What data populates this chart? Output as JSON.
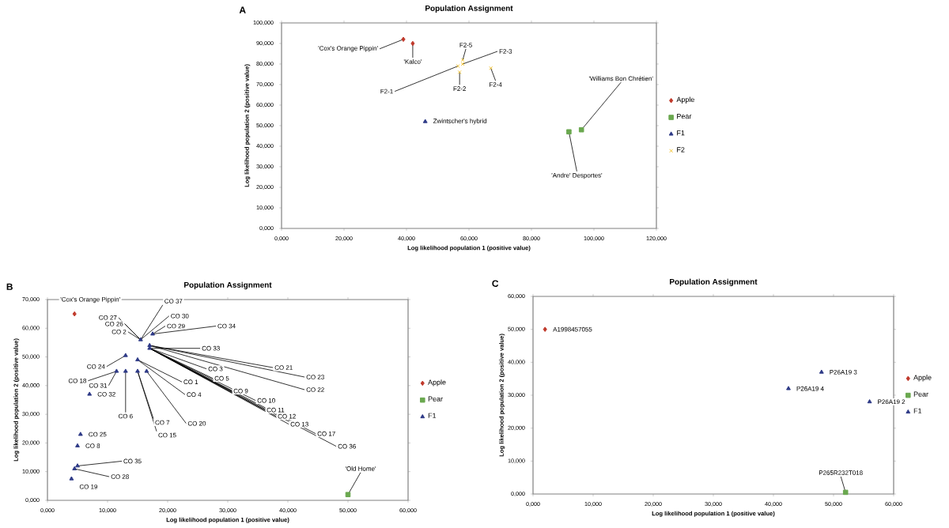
{
  "chart_data": [
    {
      "type": "scatter",
      "title": "Population Assignment",
      "xlabel": "Log likelihood population 1 (positive value)",
      "ylabel": "Log likelihood population 2 (positive value)",
      "xlim": [
        0,
        120
      ],
      "ylim": [
        0,
        100
      ],
      "xticks": [
        {
          "value": 0,
          "label": "0,000"
        },
        {
          "value": 20,
          "label": "20,000"
        },
        {
          "value": 40,
          "label": "40,000"
        },
        {
          "value": 60,
          "label": "60,000"
        },
        {
          "value": 80,
          "label": "80,000"
        },
        {
          "value": 100,
          "label": "100,000"
        },
        {
          "value": 120,
          "label": "120,000"
        }
      ],
      "yticks": [
        {
          "value": 0,
          "label": "0,000"
        },
        {
          "value": 10,
          "label": "10,000"
        },
        {
          "value": 20,
          "label": "20,000"
        },
        {
          "value": 30,
          "label": "30,000"
        },
        {
          "value": 40,
          "label": "40,000"
        },
        {
          "value": 50,
          "label": "50,000"
        },
        {
          "value": 60,
          "label": "60,000"
        },
        {
          "value": 70,
          "label": "70,000"
        },
        {
          "value": 80,
          "label": "80,000"
        },
        {
          "value": 90,
          "label": "90,000"
        },
        {
          "value": 100,
          "label": "100,000"
        }
      ],
      "legend": "right",
      "series": [
        {
          "name": "Apple",
          "color": "#c0392b",
          "marker": "diamond",
          "x": [
            39,
            42
          ],
          "values": [
            92,
            90
          ]
        },
        {
          "name": "Pear",
          "color": "#6aa84f",
          "marker": "square",
          "x": [
            92,
            96
          ],
          "values": [
            47,
            48
          ]
        },
        {
          "name": "F1",
          "color": "#2e3a87",
          "marker": "triangle",
          "x": [
            46
          ],
          "values": [
            52
          ]
        },
        {
          "name": "F2",
          "color": "#f1c232",
          "marker": "cross",
          "x": [
            56.5,
            57,
            58,
            67,
            58
          ],
          "values": [
            79,
            76,
            80,
            78,
            82
          ]
        }
      ],
      "annotations": [
        "A",
        {
          "text": "'Cox's Orange Pippin'",
          "x": 39,
          "y": 92
        },
        {
          "text": "'Kalco'",
          "x": 42,
          "y": 90
        },
        {
          "text": "F2-1",
          "x": 56.5,
          "y": 79
        },
        {
          "text": "F2-2",
          "x": 57,
          "y": 76
        },
        {
          "text": "F2-3",
          "x": 58,
          "y": 80
        },
        {
          "text": "F2-4",
          "x": 67,
          "y": 78
        },
        {
          "text": "F2-5",
          "x": 58,
          "y": 82
        },
        {
          "text": "Zwintscher's hybrid",
          "x": 46,
          "y": 52
        },
        {
          "text": "'Williams Bon Chrétien'",
          "x": 96,
          "y": 48
        },
        {
          "text": "'Andre' Desportes'",
          "x": 92,
          "y": 47
        }
      ]
    },
    {
      "type": "scatter",
      "title": "Population Assignment",
      "xlabel": "Log likelihood population 1 (positive value)",
      "ylabel": "Log likelihood population 2 (positive value)",
      "xlim": [
        0,
        60
      ],
      "ylim": [
        0,
        70
      ],
      "xticks": [
        {
          "value": 0,
          "label": "0,000"
        },
        {
          "value": 10,
          "label": "10,000"
        },
        {
          "value": 20,
          "label": "20,000"
        },
        {
          "value": 30,
          "label": "30,000"
        },
        {
          "value": 40,
          "label": "40,000"
        },
        {
          "value": 50,
          "label": "50,000"
        },
        {
          "value": 60,
          "label": "60,000"
        }
      ],
      "yticks": [
        {
          "value": 0,
          "label": "0,000"
        },
        {
          "value": 10,
          "label": "10,000"
        },
        {
          "value": 20,
          "label": "20,000"
        },
        {
          "value": 30,
          "label": "30,000"
        },
        {
          "value": 40,
          "label": "40,000"
        },
        {
          "value": 50,
          "label": "50,000"
        },
        {
          "value": 60,
          "label": "60,000"
        },
        {
          "value": 70,
          "label": "70,000"
        }
      ],
      "legend": "right",
      "series": [
        {
          "name": "Apple",
          "color": "#c0392b",
          "marker": "diamond",
          "x": [
            4.5
          ],
          "values": [
            65
          ]
        },
        {
          "name": "Pear",
          "color": "#6aa84f",
          "marker": "square",
          "x": [
            50
          ],
          "values": [
            2
          ]
        },
        {
          "name": "F1",
          "color": "#2e3a87",
          "marker": "triangle",
          "x": [
            15.5,
            17.5,
            17,
            17,
            15,
            13,
            11.5,
            13,
            15,
            16.5,
            7,
            5.5,
            5,
            5,
            4.5,
            4
          ],
          "values": [
            56,
            58,
            53,
            54,
            49,
            50.5,
            45,
            45,
            45,
            45,
            37,
            23,
            19,
            12,
            11,
            7.5
          ]
        }
      ],
      "annotations": [
        "B",
        {
          "text": "'Cox's Orange Pippin'",
          "x": 4.5,
          "y": 65
        },
        {
          "text": "'Old Home'",
          "x": 50,
          "y": 2
        },
        {
          "text": "CO 37",
          "x": 15.5,
          "y": 56
        },
        {
          "text": "CO 30",
          "x": 15.5,
          "y": 56
        },
        {
          "text": "CO 27",
          "x": 15.5,
          "y": 56
        },
        {
          "text": "CO 26",
          "x": 15.5,
          "y": 56
        },
        {
          "text": "CO 2",
          "x": 15.5,
          "y": 56
        },
        {
          "text": "CO 29",
          "x": 17.5,
          "y": 58
        },
        {
          "text": "CO 34",
          "x": 17.5,
          "y": 58
        },
        {
          "text": "CO 33",
          "x": 17,
          "y": 53
        },
        {
          "text": "CO 24",
          "x": 13,
          "y": 50.5
        },
        {
          "text": "CO 18",
          "x": 11.5,
          "y": 45
        },
        {
          "text": "CO 31",
          "x": 11.5,
          "y": 45
        },
        {
          "text": "CO 32",
          "x": 7,
          "y": 37
        },
        {
          "text": "CO 6",
          "x": 13,
          "y": 45
        },
        {
          "text": "CO 7",
          "x": 15,
          "y": 45
        },
        {
          "text": "CO 15",
          "x": 15,
          "y": 45
        },
        {
          "text": "CO 20",
          "x": 16.5,
          "y": 45
        },
        {
          "text": "CO 1",
          "x": 15,
          "y": 49
        },
        {
          "text": "CO 4",
          "x": 15,
          "y": 49
        },
        {
          "text": "CO 3",
          "x": 17,
          "y": 53
        },
        {
          "text": "CO 5",
          "x": 17,
          "y": 53
        },
        {
          "text": "CO 9",
          "x": 17,
          "y": 53
        },
        {
          "text": "CO 10",
          "x": 17,
          "y": 53
        },
        {
          "text": "CO 11",
          "x": 17,
          "y": 53
        },
        {
          "text": "CO 12",
          "x": 17,
          "y": 53
        },
        {
          "text": "CO 13",
          "x": 17,
          "y": 53
        },
        {
          "text": "CO 17",
          "x": 17,
          "y": 53
        },
        {
          "text": "CO 36",
          "x": 17,
          "y": 53
        },
        {
          "text": "CO 21",
          "x": 17,
          "y": 54
        },
        {
          "text": "CO 23",
          "x": 17,
          "y": 54
        },
        {
          "text": "CO 22",
          "x": 17,
          "y": 54
        },
        {
          "text": "CO 25",
          "x": 5.5,
          "y": 23
        },
        {
          "text": "CO 8",
          "x": 5,
          "y": 19
        },
        {
          "text": "CO 35",
          "x": 5,
          "y": 12
        },
        {
          "text": "CO 28",
          "x": 4.5,
          "y": 11
        },
        {
          "text": "CO 19",
          "x": 4,
          "y": 7.5
        }
      ]
    },
    {
      "type": "scatter",
      "title": "Population Assignment",
      "xlabel": "Log likelihood population 1 (positive value)",
      "ylabel": "Log likelihood population 2 (positive value)",
      "xlim": [
        0,
        60
      ],
      "ylim": [
        0,
        60
      ],
      "xticks": [
        {
          "value": 0,
          "label": "0,000"
        },
        {
          "value": 10,
          "label": "10,000"
        },
        {
          "value": 20,
          "label": "20,000"
        },
        {
          "value": 30,
          "label": "30,000"
        },
        {
          "value": 40,
          "label": "40,000"
        },
        {
          "value": 50,
          "label": "50,000"
        },
        {
          "value": 60,
          "label": "60,000"
        }
      ],
      "yticks": [
        {
          "value": 0,
          "label": "0,000"
        },
        {
          "value": 10,
          "label": "10,000"
        },
        {
          "value": 20,
          "label": "20,000"
        },
        {
          "value": 30,
          "label": "30,000"
        },
        {
          "value": 40,
          "label": "40,000"
        },
        {
          "value": 50,
          "label": "50,000"
        },
        {
          "value": 60,
          "label": "60,000"
        }
      ],
      "legend": "right",
      "series": [
        {
          "name": "Apple",
          "color": "#c0392b",
          "marker": "diamond",
          "x": [
            2
          ],
          "values": [
            50
          ]
        },
        {
          "name": "Pear",
          "color": "#6aa84f",
          "marker": "square",
          "x": [
            52
          ],
          "values": [
            0.5
          ]
        },
        {
          "name": "F1",
          "color": "#2e3a87",
          "marker": "triangle",
          "x": [
            48,
            42.5,
            56
          ],
          "values": [
            37,
            32,
            28
          ]
        }
      ],
      "annotations": [
        "C",
        {
          "text": "A1998457055",
          "x": 2,
          "y": 50
        },
        {
          "text": "P26A19 3",
          "x": 48,
          "y": 37
        },
        {
          "text": "P26A19 4",
          "x": 42.5,
          "y": 32
        },
        {
          "text": "P26A19 2",
          "x": 56,
          "y": 28
        },
        {
          "text": "P265R232T018",
          "x": 52,
          "y": 0.5
        }
      ]
    }
  ]
}
